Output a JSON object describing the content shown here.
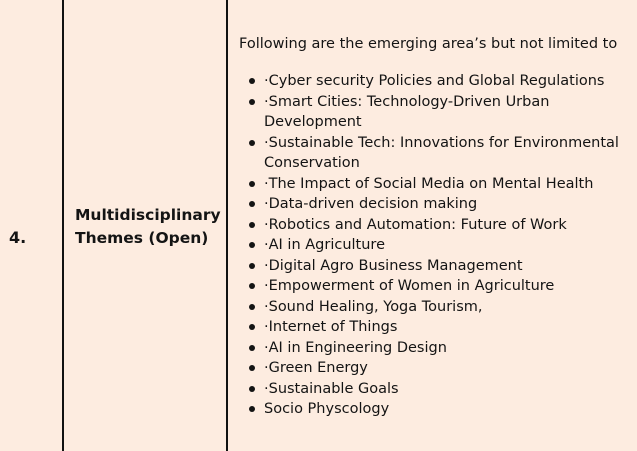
{
  "row": {
    "number": "4.",
    "theme": "Multidisciplinary Themes (Open)",
    "intro": "Following are the emerging area’s but not limited to",
    "topics": [
      "·Cyber security Policies and Global Regulations",
      "·Smart Cities: Technology-Driven Urban Development",
      "·Sustainable Tech: Innovations for Environmental Conservation",
      "·The Impact of Social Media on Mental Health",
      "·Data-driven decision making",
      "·Robotics and Automation: Future of Work",
      "·AI in Agriculture",
      "·Digital Agro Business Management",
      "·Empowerment of Women in Agriculture",
      "·Sound Healing, Yoga Tourism,",
      "·Internet of Things",
      "·AI in Engineering Design",
      "·Green Energy",
      "·Sustainable Goals",
      "Socio Physcology"
    ]
  }
}
